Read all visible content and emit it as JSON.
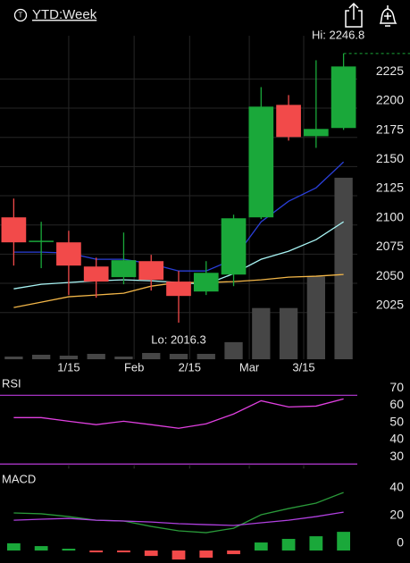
{
  "header": {
    "title": "YTD:Week"
  },
  "chart_data": [
    {
      "type": "candlestick",
      "xlim": [
        -0.5,
        12.5
      ],
      "xticks": [
        {
          "value": 2,
          "label": "1/15"
        },
        {
          "value": 4.38,
          "label": "Feb"
        },
        {
          "value": 6.4,
          "label": "2/15"
        },
        {
          "value": 8.57,
          "label": "Mar"
        },
        {
          "value": 10.55,
          "label": "3/15"
        }
      ],
      "open": [
        2106.5,
        2085.5,
        2085.1,
        2064.4,
        2055.3,
        2069,
        2051.5,
        2043,
        2057.5,
        2106.5,
        2202.8,
        2176,
        2183
      ],
      "high": [
        2122.6,
        2102.7,
        2095,
        2072,
        2093.5,
        2074.4,
        2060.6,
        2069,
        2108.8,
        2218,
        2211.2,
        2241,
        2246.8
      ],
      "low": [
        2065.2,
        2063,
        2040,
        2037.7,
        2049.2,
        2043.8,
        2016.3,
        2040,
        2047.6,
        2105,
        2172.2,
        2166,
        2181.4
      ],
      "close": [
        2085.1,
        2086.5,
        2065.2,
        2051.5,
        2069.8,
        2053,
        2039.2,
        2059,
        2105.7,
        2201.3,
        2175.3,
        2182.2,
        2235.7
      ],
      "up_color": "#1aa83a",
      "down_color": "#f24a4a",
      "ylim": [
        1985,
        2262
      ],
      "yticks": [
        2025,
        2050,
        2075,
        2100,
        2125,
        2150,
        2175,
        2200,
        2225
      ],
      "moving_averages": [
        {
          "color": "#2a3fd8",
          "values": [
            2076.7,
            2076.7,
            2075.9,
            2070.6,
            2070.6,
            2066.7,
            2060.6,
            2060.6,
            2070.6,
            2102.7,
            2120.3,
            2131.8,
            2153.9
          ]
        },
        {
          "color": "#a8f4f4",
          "values": [
            2045.3,
            2049.2,
            2050.7,
            2052.2,
            2053,
            2052.2,
            2050.7,
            2049.2,
            2058.3,
            2070.6,
            2077.5,
            2087.4,
            2102.7
          ]
        },
        {
          "color": "#f2b648",
          "values": [
            2029.3,
            2033.9,
            2038.5,
            2040,
            2041.5,
            2047.6,
            2050.7,
            2050.7,
            2051.5,
            2053,
            2055.3,
            2056.1,
            2057.6
          ]
        }
      ],
      "volume": {
        "color": "#464646",
        "ylim": [
          0,
          360
        ],
        "values": [
          3,
          5,
          4,
          6,
          3,
          7,
          6,
          6,
          19,
          57,
          57,
          92,
          202
        ]
      },
      "annotations": [
        {
          "text": "Hi: 2246.8",
          "value": 2246.8
        },
        {
          "text": "Lo: 2016.3",
          "value": 2016.3
        }
      ],
      "hi_line_color": "#1aa83a"
    },
    {
      "type": "line",
      "title": "RSI",
      "series": [
        {
          "color": "#e040e0",
          "values": [
            57,
            57,
            54.9,
            52.9,
            54.9,
            52.9,
            50.8,
            53.4,
            59.1,
            66.8,
            63.2,
            63.7,
            67.9
          ]
        }
      ],
      "ylim": [
        27,
        79
      ],
      "yticks": [
        30,
        40,
        50,
        60,
        70
      ],
      "band_color": "#b83ad8"
    },
    {
      "type": "macd",
      "title": "MACD",
      "series": [
        {
          "color": "#2a9a3a",
          "values": [
            27.1,
            26.5,
            24.5,
            21.9,
            21.3,
            17.4,
            14.2,
            12.9,
            16.1,
            25.8,
            30.3,
            34.2,
            41.9
          ]
        },
        {
          "color": "#b040e0",
          "values": [
            21.9,
            22.6,
            23.2,
            21.9,
            21.3,
            20.6,
            19.4,
            18.7,
            18.1,
            20,
            21.9,
            24.5,
            27.7
          ]
        }
      ],
      "histogram": {
        "up_color": "#1aa83a",
        "down_color": "#f24a4a",
        "values": [
          5.2,
          3.2,
          1.3,
          -1.3,
          -1.3,
          -3.9,
          -6.5,
          -5.2,
          -2.6,
          5.8,
          8.4,
          10.3,
          13.5
        ]
      },
      "ylim": [
        -9,
        55.5
      ],
      "yticks": [
        0,
        20,
        40
      ]
    }
  ]
}
